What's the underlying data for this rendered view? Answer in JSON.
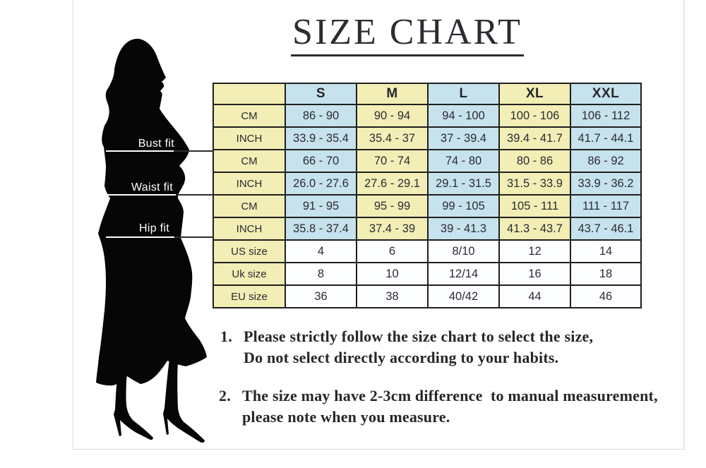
{
  "title": {
    "text": "SIZE CHART"
  },
  "figure": {
    "silhouette": "woman-in-dress-silhouette",
    "pointers": [
      {
        "label": "Bust fit"
      },
      {
        "label": "Waist fit"
      },
      {
        "label": "Hip fit"
      }
    ]
  },
  "table": {
    "corner": "",
    "sizes": [
      "S",
      "M",
      "L",
      "XL",
      "XXL"
    ],
    "rows": [
      {
        "label": "CM",
        "group": "bust",
        "style": "alt",
        "values": [
          "86 - 90",
          "90 - 94",
          "94 - 100",
          "100 - 106",
          "106 - 112"
        ]
      },
      {
        "label": "INCH",
        "group": "bust",
        "style": "alt",
        "values": [
          "33.9 - 35.4",
          "35.4 - 37",
          "37 - 39.4",
          "39.4 - 41.7",
          "41.7 - 44.1"
        ]
      },
      {
        "label": "CM",
        "group": "waist",
        "style": "alt",
        "values": [
          "66 - 70",
          "70 - 74",
          "74 - 80",
          "80 - 86",
          "86 - 92"
        ]
      },
      {
        "label": "INCH",
        "group": "waist",
        "style": "alt",
        "values": [
          "26.0 - 27.6",
          "27.6 - 29.1",
          "29.1 - 31.5",
          "31.5 - 33.9",
          "33.9 - 36.2"
        ]
      },
      {
        "label": "CM",
        "group": "hip",
        "style": "alt",
        "values": [
          "91 - 95",
          "95 - 99",
          "99 - 105",
          "105 - 111",
          "111 - 117"
        ]
      },
      {
        "label": "INCH",
        "group": "hip",
        "style": "alt",
        "values": [
          "35.8 - 37.4",
          "37.4 - 39",
          "39 - 41.3",
          "41.3 - 43.7",
          "43.7 - 46.1"
        ]
      },
      {
        "label": "US size",
        "group": "size",
        "style": "plain",
        "values": [
          "4",
          "6",
          "8/10",
          "12",
          "14"
        ]
      },
      {
        "label": "Uk size",
        "group": "size",
        "style": "plain",
        "values": [
          "8",
          "10",
          "12/14",
          "16",
          "18"
        ]
      },
      {
        "label": "EU size",
        "group": "size",
        "style": "plain",
        "values": [
          "36",
          "38",
          "40/42",
          "44",
          "46"
        ]
      }
    ]
  },
  "notes": [
    {
      "number": "1.",
      "line1": "Please strictly follow the size chart to select the size,",
      "line2": "Do not select directly according to your habits."
    },
    {
      "number": "2.",
      "line1": "The size may have 2-3cm difference  to manual measurement,",
      "line2": "please note when you measure."
    }
  ],
  "colors": {
    "yellow": "#F2EEB5",
    "blue": "#C6E2EC",
    "white_cell": "#FCFDFE",
    "table_border": "#1F1F1F",
    "ink": "#2B2B33",
    "label_text": "#FFFFFF",
    "silhouette": "#060606"
  },
  "chart_data": {
    "type": "table",
    "title": "SIZE CHART",
    "columns": [
      "",
      "S",
      "M",
      "L",
      "XL",
      "XXL"
    ],
    "rows": [
      [
        "Bust fit CM",
        "86 - 90",
        "90 - 94",
        "94 - 100",
        "100 - 106",
        "106 - 112"
      ],
      [
        "Bust fit INCH",
        "33.9 - 35.4",
        "35.4 - 37",
        "37 - 39.4",
        "39.4 - 41.7",
        "41.7 - 44.1"
      ],
      [
        "Waist fit CM",
        "66 - 70",
        "70 - 74",
        "74 - 80",
        "80 - 86",
        "86 - 92"
      ],
      [
        "Waist fit INCH",
        "26.0 - 27.6",
        "27.6 - 29.1",
        "29.1 - 31.5",
        "31.5 - 33.9",
        "33.9 - 36.2"
      ],
      [
        "Hip fit CM",
        "91 - 95",
        "95 - 99",
        "99 - 105",
        "105 - 111",
        "111 - 117"
      ],
      [
        "Hip fit INCH",
        "35.8 - 37.4",
        "37.4 - 39",
        "39 - 41.3",
        "41.3 - 43.7",
        "43.7 - 46.1"
      ],
      [
        "US size",
        "4",
        "6",
        "8/10",
        "12",
        "14"
      ],
      [
        "Uk size",
        "8",
        "10",
        "12/14",
        "16",
        "18"
      ],
      [
        "EU size",
        "36",
        "38",
        "40/42",
        "44",
        "46"
      ]
    ]
  }
}
